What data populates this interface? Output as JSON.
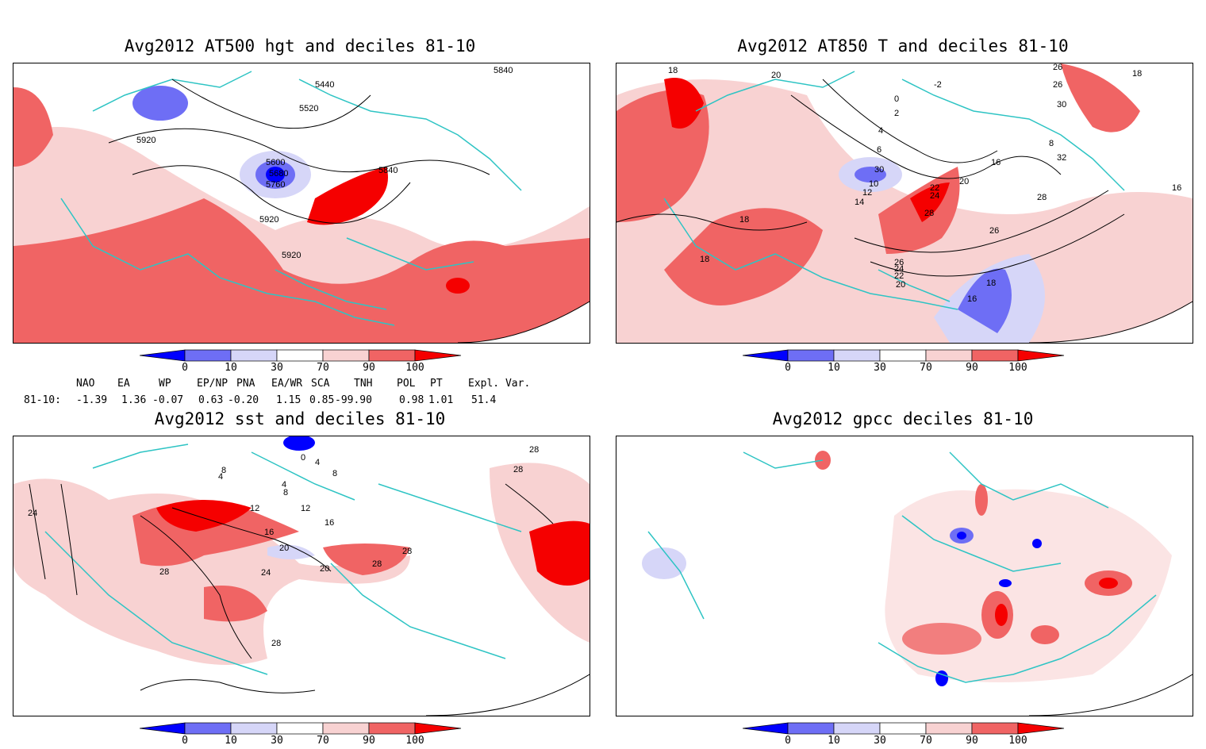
{
  "panels": [
    {
      "id": "tl",
      "title": "Avg2012 AT500 hgt and deciles 81-10",
      "contour_labels": [
        "5440",
        "5840",
        "5520",
        "5920",
        "5600",
        "5680",
        "5760",
        "5840",
        "5920",
        "5920"
      ]
    },
    {
      "id": "tr",
      "title": "Avg2012 AT850 T and deciles 81-10",
      "contour_labels": [
        "18",
        "20",
        "-2",
        "26",
        "26",
        "18",
        "0",
        "30",
        "2",
        "4",
        "6",
        "8",
        "30",
        "16",
        "32",
        "10",
        "12",
        "20",
        "22",
        "24",
        "14",
        "28",
        "16",
        "18",
        "28",
        "26",
        "18",
        "26",
        "24",
        "22",
        "20",
        "18",
        "16"
      ]
    },
    {
      "id": "bl",
      "title": "Avg2012 sst and deciles 81-10",
      "contour_labels": [
        "28",
        "28",
        "0",
        "4",
        "8",
        "4",
        "4",
        "8",
        "8",
        "12",
        "12",
        "16",
        "16",
        "20",
        "24",
        "28",
        "20",
        "28",
        "28",
        "24",
        "28"
      ]
    },
    {
      "id": "br",
      "title": "Avg2012 gpcc deciles 81-10",
      "contour_labels": []
    }
  ],
  "colorbar": {
    "ticks": [
      "0",
      "10",
      "30",
      "70",
      "90",
      "100"
    ],
    "colors": {
      "dark_blue": "#0000ff",
      "mid_blue": "#6e6ef5",
      "light_blue": "#d6d6f8",
      "white": "#ffffff",
      "light_red": "#f8d2d2",
      "mid_red": "#f06464",
      "dark_red": "#f50000"
    }
  },
  "indices": {
    "headers": [
      "NAO",
      "EA",
      "WP",
      "EP/NP",
      "PNA",
      "EA/WR",
      "SCA",
      "TNH",
      "POL",
      "PT",
      "Expl. Var."
    ],
    "row_label": "81-10:",
    "values": [
      "-1.39",
      "1.36",
      "-0.07",
      "0.63",
      "-0.20",
      "1.15",
      "0.85",
      "-99.90",
      "0.98",
      "1.01",
      "51.4"
    ]
  },
  "style": {
    "coast_color": "#2ec4c4",
    "contour_color": "#000000"
  }
}
